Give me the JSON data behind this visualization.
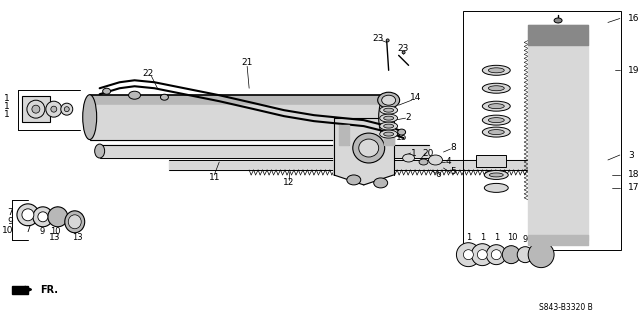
{
  "background_color": "#ffffff",
  "diagram_code": "S843-B3320 B",
  "line_color": "#000000",
  "gray_light": "#d8d8d8",
  "gray_mid": "#b8b8b8",
  "gray_dark": "#888888",
  "label_fontsize": 6.5,
  "figsize": [
    6.4,
    3.16
  ],
  "dpi": 100
}
